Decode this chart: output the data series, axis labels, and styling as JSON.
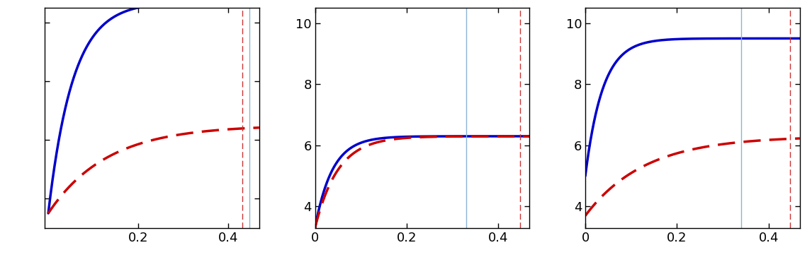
{
  "subplot1": {
    "ylim": [
      3.0,
      10.5
    ],
    "yticks": [
      4,
      6,
      8,
      10
    ],
    "xticks": [
      0.2,
      0.4
    ],
    "xticklabels": [
      "0.2",
      "0.4"
    ],
    "xlim": [
      -0.008,
      0.4681
    ],
    "show_ytick_labels": false,
    "blue_vline": 0.4468,
    "red_vline": 0.43,
    "blue_base": 3.5,
    "blue_amp": 7.2,
    "blue_tau": 0.055,
    "red_base": 3.5,
    "red_amp": 3.0,
    "red_tau": 0.13
  },
  "subplot2": {
    "ylim": [
      3.3,
      10.5
    ],
    "yticks": [
      4,
      6,
      8,
      10
    ],
    "xticks": [
      0,
      0.2,
      0.4
    ],
    "xticklabels": [
      "0",
      "0.2",
      "0.4"
    ],
    "xlim": [
      0.0,
      0.4681
    ],
    "show_ytick_labels": true,
    "blue_vline": 0.33,
    "red_vline": 0.4468,
    "blue_base": 3.3,
    "blue_amp": 3.0,
    "blue_tau": 0.038,
    "red_base": 3.3,
    "red_amp": 3.0,
    "red_tau": 0.05
  },
  "subplot3": {
    "ylim": [
      3.3,
      10.5
    ],
    "yticks": [
      4,
      6,
      8,
      10
    ],
    "xticks": [
      0,
      0.2,
      0.4
    ],
    "xticklabels": [
      "0",
      "0.2",
      "0.4"
    ],
    "xlim": [
      0.0,
      0.4681
    ],
    "show_ytick_labels": true,
    "blue_vline": 0.34,
    "red_vline": 0.4468,
    "blue_base": 5.0,
    "blue_amp": 4.5,
    "blue_tau": 0.038,
    "red_base": 3.7,
    "red_amp": 2.6,
    "red_tau": 0.13
  },
  "blue_color": "#0000cc",
  "red_color": "#cc0000",
  "blue_vline_color": "#8ab4d4",
  "red_vline_color": "#cc3333",
  "linewidth": 2.5,
  "vline_linewidth": 1.0,
  "tick_fontsize": 13,
  "fig_width": 11.46,
  "fig_height": 3.71,
  "dpi": 100
}
